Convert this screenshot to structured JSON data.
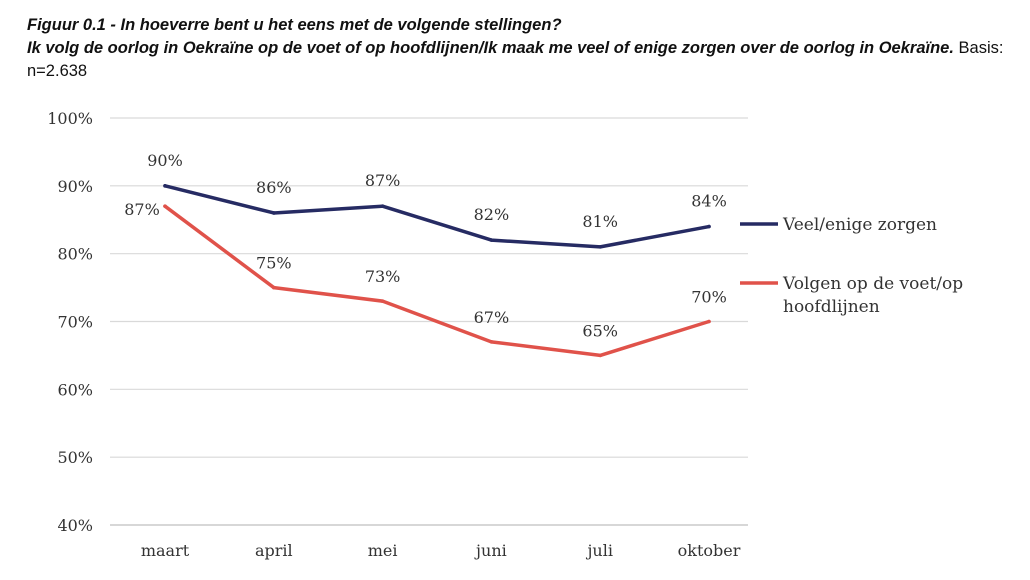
{
  "caption": {
    "figure_title": "Figuur 0.1 - In hoeverre bent u het eens met de volgende stellingen?",
    "statement": "Ik volg de oorlog in Oekraïne op de voet of op hoofdlijnen/Ik maak me veel of enige zorgen over de oorlog in Oekraïne.",
    "basis": "Basis: n=2.638"
  },
  "chart_data": {
    "type": "line",
    "title": "Figuur 0.1 - In hoeverre bent u het eens met de volgende stellingen?",
    "categories": [
      "maart",
      "april",
      "mei",
      "juni",
      "juli",
      "oktober"
    ],
    "ylim": [
      40,
      100
    ],
    "yticks": [
      40,
      50,
      60,
      70,
      80,
      90,
      100
    ],
    "ytick_labels": [
      "40%",
      "50%",
      "60%",
      "70%",
      "80%",
      "90%",
      "100%"
    ],
    "grid": true,
    "legend_position": "right",
    "series": [
      {
        "name": "Veel/enige zorgen",
        "color": "#262b63",
        "values": [
          90,
          86,
          87,
          82,
          81,
          84
        ],
        "labels": [
          "90%",
          "86%",
          "87%",
          "82%",
          "81%",
          "84%"
        ],
        "legend_lines": [
          "Veel/enige zorgen"
        ]
      },
      {
        "name": "Volgen op de voet/op hoofdlijnen",
        "color": "#e0524a",
        "values": [
          87,
          75,
          73,
          67,
          65,
          70
        ],
        "labels": [
          "87%",
          "75%",
          "73%",
          "67%",
          "65%",
          "70%"
        ],
        "legend_lines": [
          "Volgen op de voet/op",
          "hoofdlijnen"
        ]
      }
    ]
  }
}
